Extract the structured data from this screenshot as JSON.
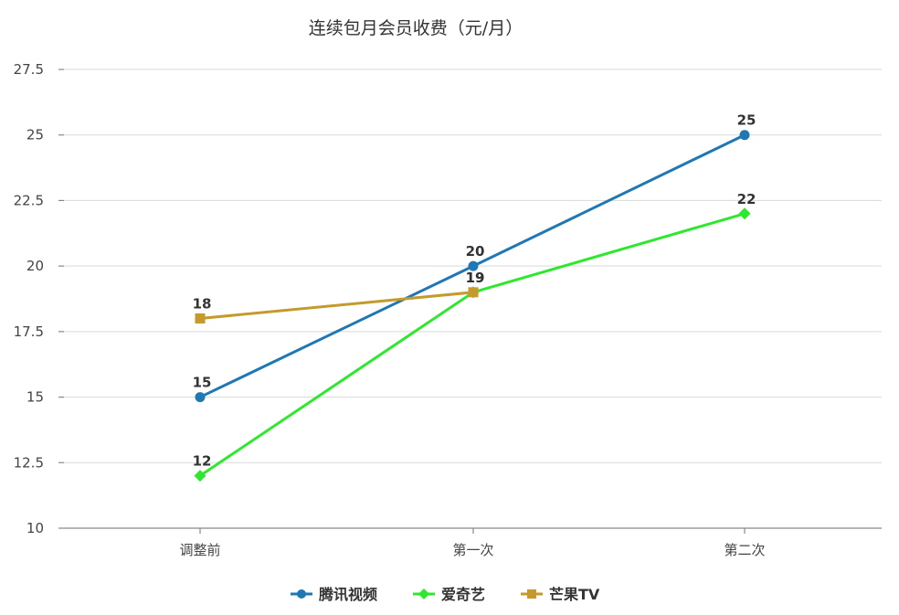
{
  "chart_data": {
    "type": "line",
    "title": "连续包月会员收费（元/月）",
    "categories": [
      "调整前",
      "第一次",
      "第二次"
    ],
    "ylim": [
      10,
      27.5
    ],
    "yticks": [
      "10",
      "12.5",
      "15",
      "17.5",
      "20",
      "22.5",
      "25",
      "27.5"
    ],
    "grid": true,
    "legend_position": "bottom-center",
    "series": [
      {
        "name": "腾讯视频",
        "values": [
          15,
          20,
          25
        ],
        "color": "#1f77b4",
        "marker": "circle"
      },
      {
        "name": "爱奇艺",
        "values": [
          12,
          19,
          22
        ],
        "color": "#2ee82e",
        "marker": "diamond"
      },
      {
        "name": "芒果TV",
        "values": [
          18,
          19,
          null
        ],
        "color": "#c49a2c",
        "marker": "square"
      }
    ]
  }
}
